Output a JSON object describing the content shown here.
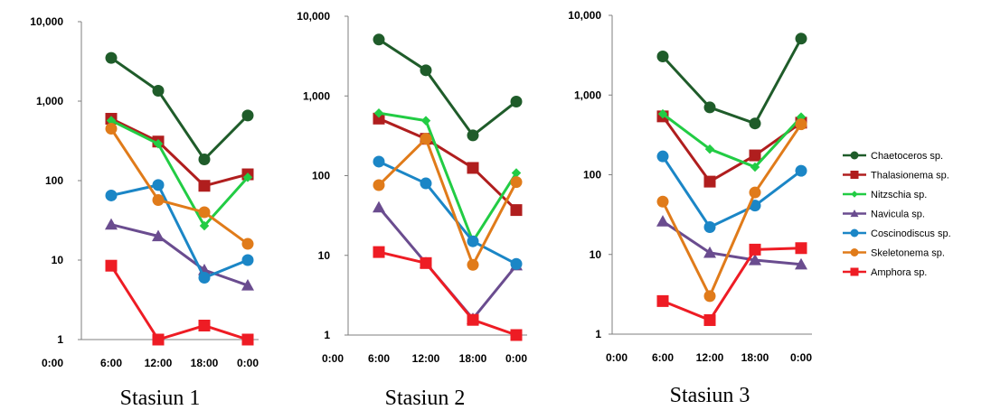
{
  "chart_data": [
    {
      "type": "line",
      "title": "Stasiun 1",
      "scale": "log",
      "ylim": [
        1,
        10000
      ],
      "x": [
        "0:00",
        "6:00",
        "12:00",
        "18:00",
        "0:00"
      ],
      "ytick_labels": [
        "1",
        "10",
        "100",
        "1,000",
        "10,000"
      ],
      "grid": false,
      "series": [
        {
          "name": "Chaetoceros sp.",
          "values": [
            null,
            3500,
            1350,
            185,
            660
          ]
        },
        {
          "name": "Thalasionema sp.",
          "values": [
            null,
            600,
            310,
            86,
            120
          ]
        },
        {
          "name": "Nitzschia sp.",
          "values": [
            null,
            570,
            290,
            27,
            110
          ]
        },
        {
          "name": "Navicula sp.",
          "values": [
            null,
            28,
            20,
            7.5,
            4.8
          ]
        },
        {
          "name": "Coscinodiscus sp.",
          "values": [
            null,
            65,
            88,
            6,
            10
          ]
        },
        {
          "name": "Skeletonema sp.",
          "values": [
            null,
            450,
            57,
            40,
            16
          ]
        },
        {
          "name": "Amphora sp.",
          "values": [
            null,
            8.5,
            1,
            1.5,
            1
          ]
        }
      ]
    },
    {
      "type": "line",
      "title": "Stasiun 2",
      "scale": "log",
      "ylim": [
        1,
        10000
      ],
      "x": [
        "0:00",
        "6:00",
        "12:00",
        "18:00",
        "0:00"
      ],
      "ytick_labels": [
        "1",
        "10",
        "100",
        "1,000",
        "10,000"
      ],
      "grid": false,
      "series": [
        {
          "name": "Chaetoceros sp.",
          "values": [
            null,
            5100,
            2100,
            320,
            850
          ]
        },
        {
          "name": "Thalasionema sp.",
          "values": [
            null,
            520,
            290,
            125,
            37
          ]
        },
        {
          "name": "Nitzschia sp.",
          "values": [
            null,
            610,
            490,
            15,
            108
          ]
        },
        {
          "name": "Navicula sp.",
          "values": [
            null,
            40,
            8,
            1.6,
            7.5
          ]
        },
        {
          "name": "Coscinodiscus sp.",
          "values": [
            null,
            150,
            80,
            15,
            7.8
          ]
        },
        {
          "name": "Skeletonema sp.",
          "values": [
            null,
            76,
            290,
            7.6,
            83
          ]
        },
        {
          "name": "Amphora sp.",
          "values": [
            null,
            11,
            8,
            1.55,
            1
          ]
        }
      ]
    },
    {
      "type": "line",
      "title": "Stasiun 3",
      "scale": "log",
      "ylim": [
        1,
        10000
      ],
      "x": [
        "0:00",
        "6:00",
        "12:00",
        "18:00",
        "0:00"
      ],
      "ytick_labels": [
        "1",
        "10",
        "100",
        "1,000",
        "10,000"
      ],
      "grid": false,
      "series": [
        {
          "name": "Chaetoceros sp.",
          "values": [
            null,
            3050,
            700,
            440,
            5100
          ]
        },
        {
          "name": "Thalasionema sp.",
          "values": [
            null,
            540,
            82,
            175,
            450
          ]
        },
        {
          "name": "Nitzschia sp.",
          "values": [
            null,
            580,
            210,
            125,
            530
          ]
        },
        {
          "name": "Navicula sp.",
          "values": [
            null,
            26,
            10.5,
            8.5,
            7.5
          ]
        },
        {
          "name": "Coscinodiscus sp.",
          "values": [
            null,
            170,
            22,
            41,
            112
          ]
        },
        {
          "name": "Skeletonema sp.",
          "values": [
            null,
            46,
            3,
            60,
            430
          ]
        },
        {
          "name": "Amphora sp.",
          "values": [
            null,
            2.6,
            1.5,
            11.5,
            12
          ]
        }
      ]
    }
  ],
  "legend": {
    "position": "right",
    "items": [
      {
        "name": "Chaetoceros sp.",
        "color": "#1f5c2a",
        "marker": "circle"
      },
      {
        "name": "Thalasionema sp.",
        "color": "#b01e1e",
        "marker": "square"
      },
      {
        "name": "Nitzschia sp.",
        "color": "#22cc44",
        "marker": "diamond"
      },
      {
        "name": "Navicula sp.",
        "color": "#6a4c8f",
        "marker": "triangle"
      },
      {
        "name": "Coscinodiscus sp.",
        "color": "#1b86c6",
        "marker": "circle"
      },
      {
        "name": "Skeletonema sp.",
        "color": "#e07b1a",
        "marker": "circle"
      },
      {
        "name": "Amphora sp.",
        "color": "#ee1c24",
        "marker": "square"
      }
    ]
  }
}
